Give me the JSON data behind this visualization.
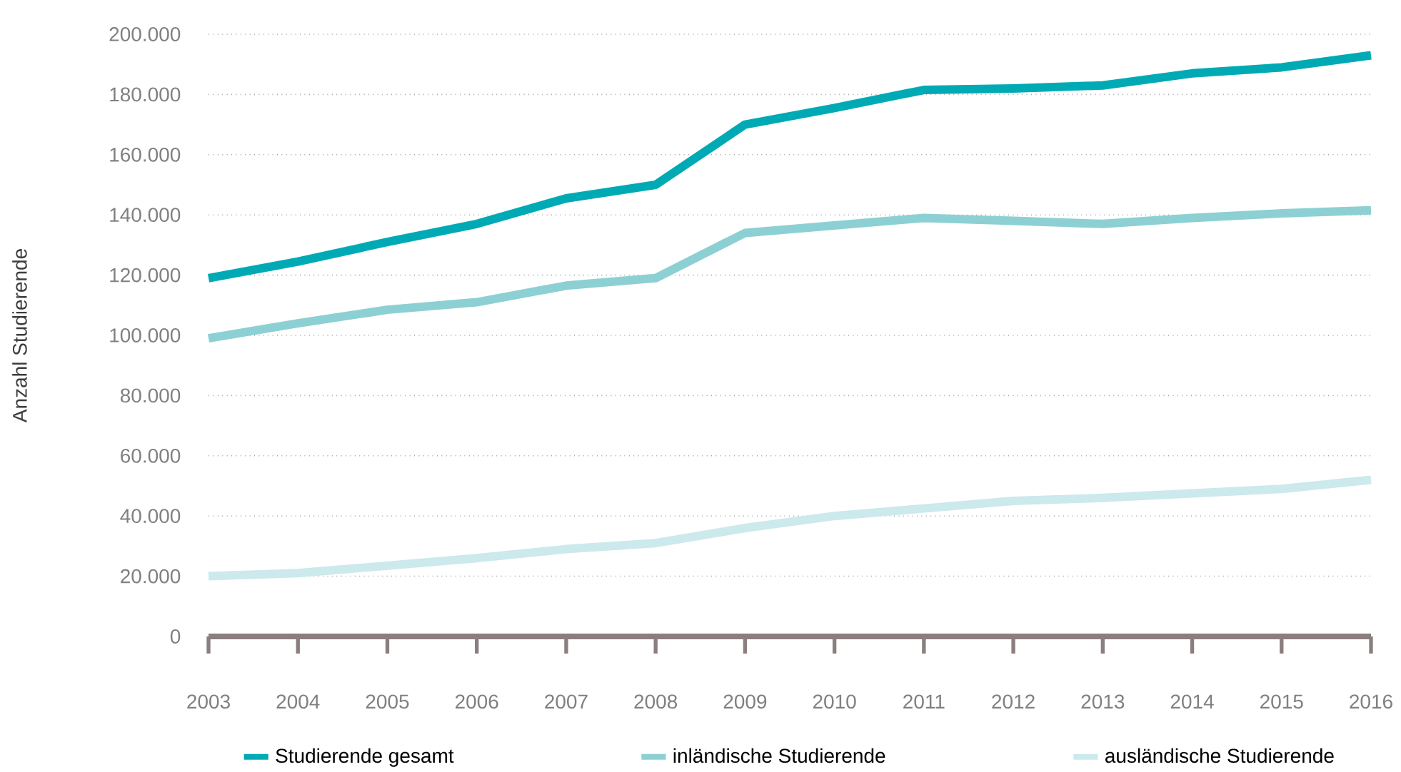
{
  "chart_data": {
    "type": "line",
    "ylabel": "Anzahl Studierende",
    "x": [
      2003,
      2004,
      2005,
      2006,
      2007,
      2008,
      2009,
      2010,
      2011,
      2012,
      2013,
      2014,
      2015,
      2016
    ],
    "xlim": [
      2003,
      2016
    ],
    "xticks": [
      2003,
      2004,
      2005,
      2006,
      2007,
      2008,
      2009,
      2010,
      2011,
      2012,
      2013,
      2014,
      2015,
      2016
    ],
    "ylim": [
      0,
      200000
    ],
    "yticks": [
      0,
      {
        "value": 20000,
        "label": "20.000"
      },
      {
        "value": 40000,
        "label": "40.000"
      },
      {
        "value": 60000,
        "label": "60.000"
      },
      {
        "value": 80000,
        "label": "80.000"
      },
      {
        "value": 100000,
        "label": "100.000"
      },
      {
        "value": 120000,
        "label": "120.000"
      },
      {
        "value": 140000,
        "label": "140.000"
      },
      {
        "value": 160000,
        "label": "160.000"
      },
      {
        "value": 180000,
        "label": "180.000"
      },
      {
        "value": 200000,
        "label": "200.000"
      }
    ],
    "series": [
      {
        "name": "Studierende gesamt",
        "color": "#00aab4",
        "values": [
          119000,
          124500,
          131000,
          137000,
          145500,
          150000,
          170000,
          175500,
          181500,
          182000,
          183000,
          187000,
          189000,
          193000
        ]
      },
      {
        "name": "inländische Studierende",
        "color": "#8dd0d4",
        "values": [
          99000,
          104000,
          108500,
          111000,
          116500,
          119000,
          134000,
          136500,
          139000,
          138000,
          137000,
          139000,
          140500,
          141500
        ]
      },
      {
        "name": "ausländische Studierende",
        "color": "#cce9ec",
        "values": [
          20000,
          21000,
          23500,
          26000,
          29000,
          31000,
          36000,
          40000,
          42500,
          45000,
          46000,
          47500,
          49000,
          52000
        ]
      }
    ],
    "grid": "y",
    "legend": "bottom",
    "marker": "none",
    "line_style": "solid"
  }
}
